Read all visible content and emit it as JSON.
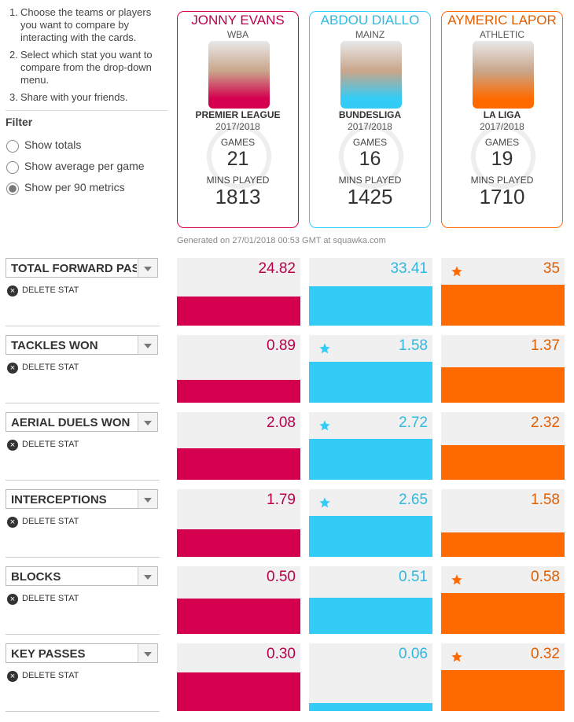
{
  "instructions": [
    "Choose the teams or players you want to compare by interacting with the cards.",
    "Select which stat you want to compare from the drop-down menu.",
    "Share with your friends."
  ],
  "filter": {
    "title": "Filter",
    "options": [
      "Show totals",
      "Show average per game",
      "Show per 90 metrics"
    ],
    "selected": 2
  },
  "players": [
    {
      "name": "JONNY EVANS",
      "team": "WBA",
      "league": "PREMIER LEAGUE",
      "season": "2017/2018",
      "games_label": "GAMES",
      "games": 21,
      "mins_label": "MINS PLAYED",
      "mins": 1813,
      "color": "#d4004f",
      "text_color": "#b8004a"
    },
    {
      "name": "ABDOU DIALLO",
      "team": "MAINZ",
      "league": "BUNDESLIGA",
      "season": "2017/2018",
      "games_label": "GAMES",
      "games": 16,
      "mins_label": "MINS PLAYED",
      "mins": 1425,
      "color": "#33ccf7",
      "text_color": "#2fb8e0"
    },
    {
      "name": "AYMERIC LAPOR",
      "team": "ATHLETIC",
      "league": "LA LIGA",
      "season": "2017/2018",
      "games_label": "GAMES",
      "games": 19,
      "mins_label": "MINS PLAYED",
      "mins": 1710,
      "color": "#ff6a00",
      "text_color": "#e05d00"
    }
  ],
  "generated": "Generated on 27/01/2018 00:53 GMT at squawka.com",
  "delete_label": "DELETE STAT",
  "stats": [
    {
      "name": "TOTAL FORWARD PAS",
      "values": [
        24.82,
        33.41,
        35
      ]
    },
    {
      "name": "TACKLES WON",
      "values": [
        0.89,
        1.58,
        1.37
      ]
    },
    {
      "name": "AERIAL DUELS WON",
      "values": [
        2.08,
        2.72,
        2.32
      ]
    },
    {
      "name": "INTERCEPTIONS",
      "values": [
        1.79,
        2.65,
        1.58
      ]
    },
    {
      "name": "BLOCKS",
      "values": [
        0.5,
        0.51,
        0.58
      ],
      "value_labels": [
        "0.50",
        "0.51",
        "0.58"
      ]
    },
    {
      "name": "KEY PASSES",
      "values": [
        0.3,
        0.06,
        0.32
      ],
      "value_labels": [
        "0.30",
        "0.06",
        "0.32"
      ]
    }
  ]
}
